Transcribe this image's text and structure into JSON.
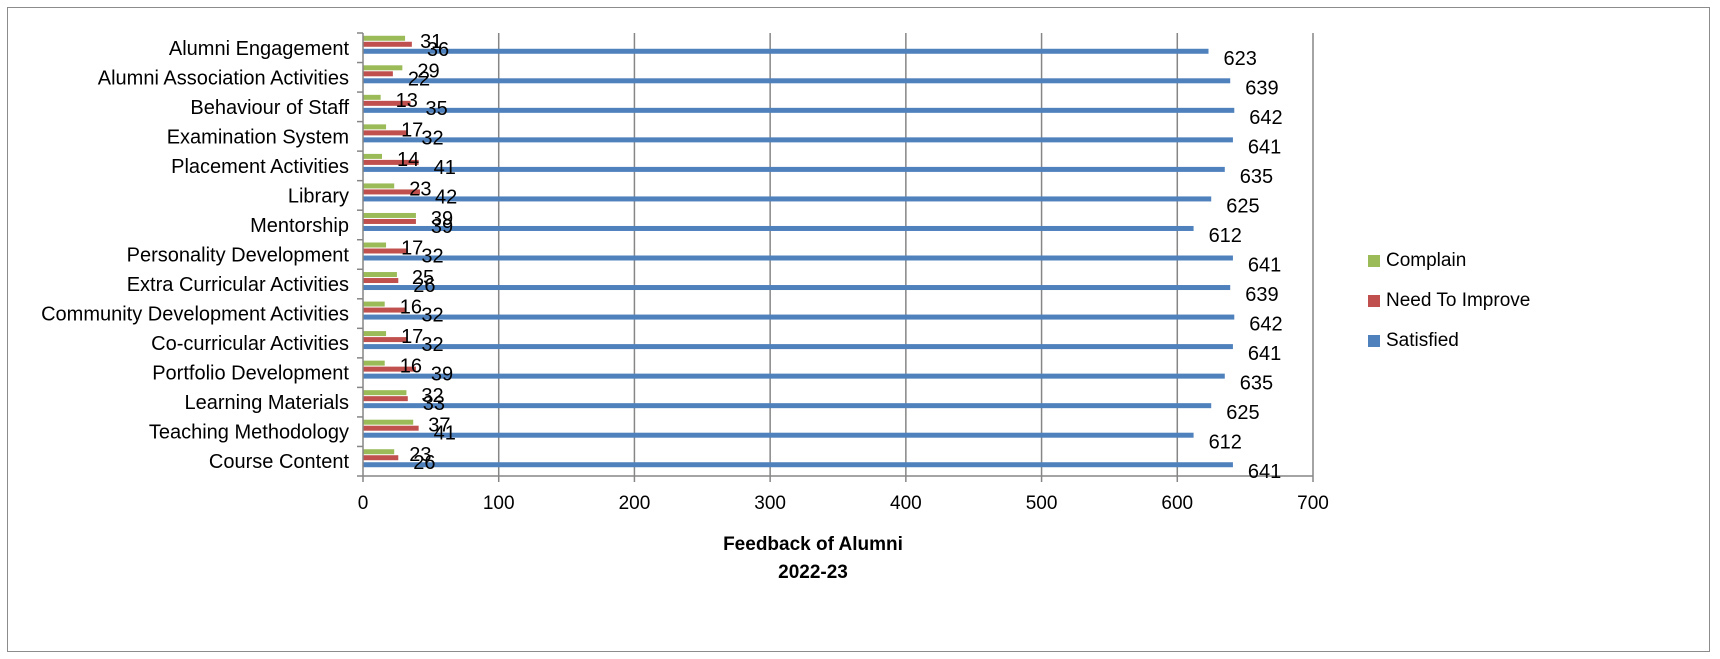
{
  "chart_data": {
    "type": "bar",
    "orientation": "horizontal",
    "categories": [
      "Course Content",
      "Teaching Methodology",
      "Learning Materials",
      "Portfolio Development",
      "Co-curricular Activities",
      "Community Development Activities",
      "Extra Curricular Activities",
      "Personality Development",
      "Mentorship",
      "Library",
      "Placement Activities",
      "Examination System",
      "Behaviour of Staff",
      "Alumni Association Activities",
      "Alumni Engagement"
    ],
    "series": [
      {
        "name": "Satisfied",
        "color": "#4F81BD",
        "values": [
          641,
          612,
          625,
          635,
          641,
          642,
          639,
          641,
          612,
          625,
          635,
          641,
          642,
          639,
          623
        ]
      },
      {
        "name": "Need To Improve",
        "color": "#C0504D",
        "values": [
          26,
          41,
          33,
          39,
          32,
          32,
          26,
          32,
          39,
          42,
          41,
          32,
          35,
          22,
          36
        ]
      },
      {
        "name": "Complain",
        "color": "#9BBB59",
        "values": [
          23,
          37,
          32,
          16,
          17,
          16,
          25,
          17,
          39,
          23,
          14,
          17,
          13,
          29,
          31
        ]
      }
    ],
    "xlabel": [
      "Feedback of Alumni",
      "2022-23"
    ],
    "ylabel": "",
    "xlim": [
      0,
      700
    ],
    "xticks": [
      0,
      100,
      200,
      300,
      400,
      500,
      600,
      700
    ],
    "grid": "vertical",
    "legend_position": "right",
    "legend_order": [
      "Complain",
      "Need To Improve",
      "Satisfied"
    ]
  }
}
